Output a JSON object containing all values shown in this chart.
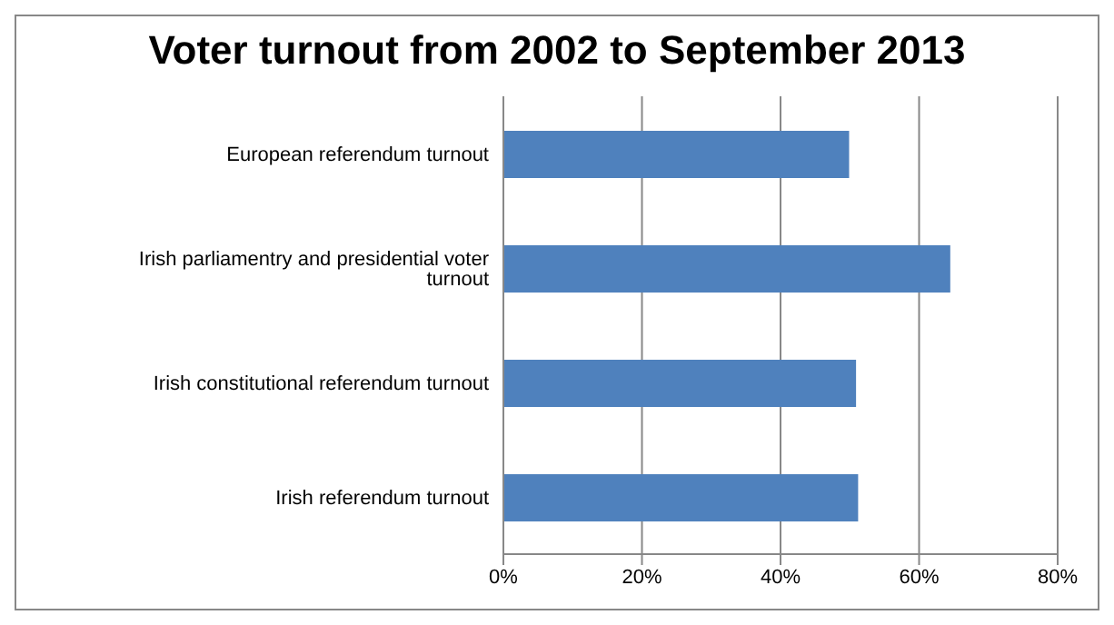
{
  "chart_data": {
    "type": "bar",
    "orientation": "horizontal",
    "title": "Voter turnout from 2002 to September 2013",
    "categories": [
      "European referendum turnout",
      "Irish parliamentry and presidential voter turnout",
      "Irish constitutional referendum turnout",
      "Irish referendum turnout"
    ],
    "values": [
      49.9,
      64.5,
      50.9,
      51.2
    ],
    "color": "#4f81bd",
    "xlim": [
      0,
      80
    ],
    "xticks": [
      {
        "value": 0,
        "label": "0%"
      },
      {
        "value": 20,
        "label": "20%"
      },
      {
        "value": 40,
        "label": "40%"
      },
      {
        "value": 60,
        "label": "60%"
      },
      {
        "value": 80,
        "label": "80%"
      }
    ],
    "grid": "x"
  }
}
